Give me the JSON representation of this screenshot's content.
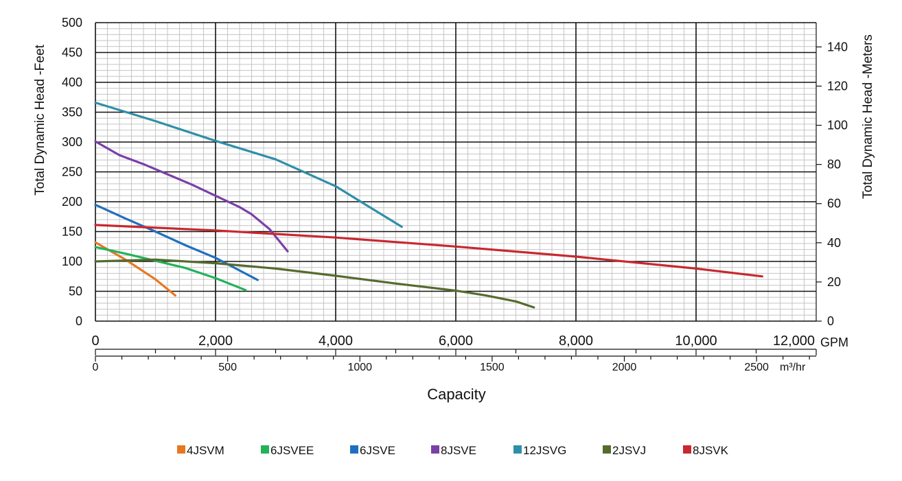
{
  "chart_data": {
    "type": "line",
    "xlabel": "Capacity",
    "ylabel_left": "Total Dynamic Head -Feet",
    "ylabel_right": "Total Dynamic Head -Meters",
    "x_unit_primary": "GPM",
    "x_unit_secondary": "m³/hr",
    "xlim": [
      0,
      12000
    ],
    "ylim": [
      0,
      500
    ],
    "x_ticks": [
      "0",
      "2,000",
      "4,000",
      "6,000",
      "8,000",
      "10,000",
      "12,000"
    ],
    "x_ticks_secondary": [
      "0",
      "500",
      "1000",
      "1500",
      "2000",
      "2500"
    ],
    "y_ticks": [
      "0",
      "50",
      "100",
      "150",
      "200",
      "250",
      "300",
      "350",
      "400",
      "450",
      "500"
    ],
    "y_ticks_right": [
      "0",
      "20",
      "40",
      "60",
      "80",
      "100",
      "120",
      "140"
    ],
    "grid": true,
    "legend_position": "bottom",
    "series": [
      {
        "name": "4JSVM",
        "color": "#e87722",
        "x": [
          0,
          500,
          1000,
          1330
        ],
        "y": [
          132,
          103,
          70,
          43
        ]
      },
      {
        "name": "6JSVEE",
        "color": "#22b25a",
        "x": [
          0,
          500,
          1000,
          1500,
          2000,
          2500
        ],
        "y": [
          124,
          113,
          101,
          89,
          72,
          52
        ]
      },
      {
        "name": "6JSVE",
        "color": "#1f6fc0",
        "x": [
          0,
          500,
          1000,
          1500,
          2000,
          2700
        ],
        "y": [
          195,
          172,
          150,
          127,
          106,
          69
        ]
      },
      {
        "name": "8JSVE",
        "color": "#7b3fa8",
        "x": [
          0,
          400,
          800,
          1200,
          1600,
          2000,
          2400,
          2600,
          2900,
          3200
        ],
        "y": [
          301,
          278,
          263,
          246,
          229,
          210,
          191,
          179,
          154,
          117
        ]
      },
      {
        "name": "12JSVG",
        "color": "#2f8fa8",
        "x": [
          0,
          1000,
          2000,
          3000,
          4000,
          4500,
          5100
        ],
        "y": [
          366,
          335,
          302,
          271,
          226,
          195,
          158
        ]
      },
      {
        "name": "2JSVJ",
        "color": "#556b2f",
        "x": [
          0,
          1000,
          2000,
          3000,
          4000,
          5000,
          6000,
          6500,
          7000,
          7300
        ],
        "y": [
          100,
          103,
          97,
          88,
          76,
          63,
          51,
          43,
          33,
          23
        ]
      },
      {
        "name": "8JSVK",
        "color": "#c8282e",
        "x": [
          0,
          2000,
          4000,
          6000,
          8000,
          10000,
          11100
        ],
        "y": [
          161,
          152,
          140,
          125,
          108,
          88,
          75
        ]
      }
    ]
  }
}
